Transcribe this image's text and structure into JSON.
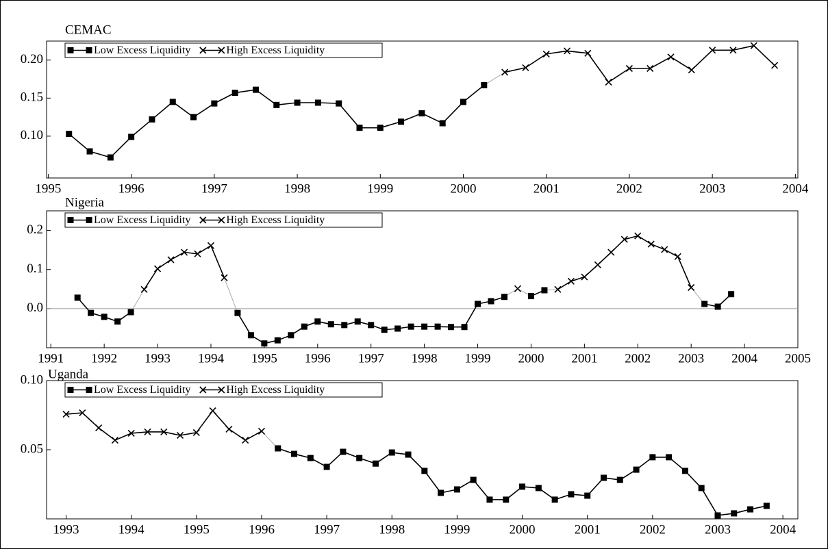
{
  "chart_data": [
    {
      "type": "line",
      "title": "CEMAC",
      "legend": "upper left",
      "x": [
        1995.25,
        1995.5,
        1995.75,
        1996,
        1996.25,
        1996.5,
        1996.75,
        1997,
        1997.25,
        1997.5,
        1997.75,
        1998,
        1998.25,
        1998.5,
        1998.75,
        1999,
        1999.25,
        1999.5,
        1999.75,
        2000,
        2000.25,
        2000.5,
        2000.75,
        2001,
        2001.25,
        2001.5,
        2001.75,
        2002,
        2002.25,
        2002.5,
        2002.75,
        2003,
        2003.25,
        2003.5,
        2003.75
      ],
      "series": [
        {
          "name": "Low Excess Liquidity",
          "color": "#000000",
          "marker": "square",
          "values": [
            0.103,
            0.08,
            0.072,
            0.099,
            0.122,
            0.145,
            0.125,
            0.143,
            0.157,
            0.161,
            0.141,
            0.144,
            0.144,
            0.143,
            0.111,
            0.111,
            0.119,
            0.13,
            0.117,
            0.145,
            0.167,
            null,
            null,
            null,
            null,
            null,
            null,
            null,
            null,
            null,
            null,
            null,
            null,
            null,
            null
          ]
        },
        {
          "name": "High Excess Liquidity",
          "color": "#000000",
          "marker": "x",
          "values": [
            null,
            null,
            null,
            null,
            null,
            null,
            null,
            null,
            null,
            null,
            null,
            null,
            null,
            null,
            null,
            null,
            null,
            null,
            null,
            null,
            null,
            0.184,
            0.19,
            0.208,
            0.212,
            0.209,
            0.171,
            0.189,
            0.189,
            0.204,
            0.187,
            0.213,
            0.213,
            0.219,
            0.193
          ]
        }
      ],
      "xlim": [
        1994.98,
        2004.03
      ],
      "xticks": [
        1995,
        1996,
        1997,
        1998,
        1999,
        2000,
        2001,
        2002,
        2003,
        2004
      ],
      "ylim": [
        0.045,
        0.225
      ],
      "yticks": [
        {
          "value": 0.1,
          "label": "0.10"
        },
        0.15,
        {
          "value": 0.2,
          "label": "0.20"
        }
      ]
    },
    {
      "type": "line",
      "title": "Nigeria",
      "legend": "upper left",
      "zero_line": true,
      "x": [
        1991.5,
        1991.75,
        1992,
        1992.25,
        1992.5,
        1992.75,
        1993,
        1993.25,
        1993.5,
        1993.75,
        1994,
        1994.25,
        1994.5,
        1994.75,
        1995,
        1995.25,
        1995.5,
        1995.75,
        1996,
        1996.25,
        1996.5,
        1996.75,
        1997,
        1997.25,
        1997.5,
        1997.75,
        1998,
        1998.25,
        1998.5,
        1998.75,
        1999,
        1999.25,
        1999.5,
        1999.75,
        2000,
        2000.25,
        2000.5,
        2000.75,
        2001,
        2001.25,
        2001.5,
        2001.75,
        2002,
        2002.25,
        2002.5,
        2002.75,
        2003,
        2003.25,
        2003.5,
        2003.75
      ],
      "series": [
        {
          "name": "Low Excess Liquidity",
          "color": "#000000",
          "marker": "square",
          "values": [
            0.028,
            -0.011,
            -0.021,
            -0.033,
            -0.009,
            null,
            null,
            null,
            null,
            null,
            null,
            null,
            -0.011,
            -0.068,
            -0.089,
            -0.081,
            -0.068,
            -0.046,
            -0.033,
            -0.04,
            -0.042,
            -0.033,
            -0.042,
            -0.054,
            -0.051,
            -0.046,
            -0.046,
            -0.046,
            -0.047,
            -0.047,
            0.012,
            0.019,
            0.03,
            null,
            0.032,
            0.047,
            null,
            null,
            null,
            null,
            null,
            null,
            null,
            null,
            null,
            null,
            null,
            0.012,
            0.005,
            0.037
          ]
        },
        {
          "name": "High Excess Liquidity",
          "color": "#000000",
          "marker": "x",
          "values": [
            null,
            null,
            null,
            null,
            null,
            0.049,
            0.102,
            0.125,
            0.144,
            0.14,
            0.161,
            0.079,
            null,
            null,
            null,
            null,
            null,
            null,
            null,
            null,
            null,
            null,
            null,
            null,
            null,
            null,
            null,
            null,
            null,
            null,
            null,
            null,
            null,
            0.051,
            null,
            null,
            0.049,
            0.07,
            0.081,
            0.112,
            0.144,
            0.177,
            0.186,
            0.165,
            0.151,
            0.133,
            0.054,
            null,
            null,
            null
          ]
        }
      ],
      "xlim": [
        1990.92,
        2005
      ],
      "xticks": [
        1991,
        1992,
        1993,
        1994,
        1995,
        1996,
        1997,
        1998,
        1999,
        2000,
        2001,
        2002,
        2003,
        2004,
        2005
      ],
      "ylim": [
        -0.1,
        0.25
      ],
      "yticks": [
        {
          "value": 0,
          "label": "0.0"
        },
        0.1,
        0.2
      ]
    },
    {
      "type": "line",
      "title": "Uganda",
      "legend": "upper left",
      "x": [
        1993,
        1993.25,
        1993.5,
        1993.75,
        1994,
        1994.25,
        1994.5,
        1994.75,
        1995,
        1995.25,
        1995.5,
        1995.75,
        1996,
        1996.25,
        1996.5,
        1996.75,
        1997,
        1997.25,
        1997.5,
        1997.75,
        1998,
        1998.25,
        1998.5,
        1998.75,
        1999,
        1999.25,
        1999.5,
        1999.75,
        2000,
        2000.25,
        2000.5,
        2000.75,
        2001,
        2001.25,
        2001.5,
        2001.75,
        2002,
        2002.25,
        2002.5,
        2002.75,
        2003,
        2003.25,
        2003.5,
        2003.75
      ],
      "series": [
        {
          "name": "Low Excess Liquidity",
          "color": "#000000",
          "marker": "square",
          "values": [
            null,
            null,
            null,
            null,
            null,
            null,
            null,
            null,
            null,
            null,
            null,
            null,
            null,
            0.051,
            0.047,
            0.044,
            0.0376,
            0.0485,
            0.044,
            0.04,
            0.048,
            0.0465,
            0.0347,
            0.0188,
            0.0213,
            0.0282,
            0.0139,
            0.0139,
            0.0233,
            0.0223,
            0.0139,
            0.0178,
            0.0168,
            0.0297,
            0.0282,
            0.0356,
            0.0446,
            0.0446,
            0.0347,
            0.0223,
            0.0025,
            0.004,
            0.0069,
            0.0094
          ]
        },
        {
          "name": "High Excess Liquidity",
          "color": "#000000",
          "marker": "x",
          "values": [
            0.0757,
            0.0767,
            0.0658,
            0.0569,
            0.0619,
            0.0629,
            0.0629,
            0.0604,
            0.0624,
            0.0782,
            0.0649,
            0.0569,
            0.0634,
            null,
            null,
            null,
            null,
            null,
            null,
            null,
            null,
            null,
            null,
            null,
            null,
            null,
            null,
            null,
            null,
            null,
            null,
            null,
            null,
            null,
            null,
            null,
            null,
            null,
            null,
            null,
            null,
            null,
            null,
            null
          ]
        }
      ],
      "xlim": [
        1992.7,
        2004.23
      ],
      "xticks": [
        1993,
        1994,
        1995,
        1996,
        1997,
        1998,
        1999,
        2000,
        2001,
        2002,
        2003,
        2004
      ],
      "ylim": [
        0,
        0.1
      ],
      "yticks": [
        {
          "value": 0.05,
          "label": "0.05"
        },
        {
          "value": 0.1,
          "label": "0.10"
        }
      ]
    }
  ]
}
